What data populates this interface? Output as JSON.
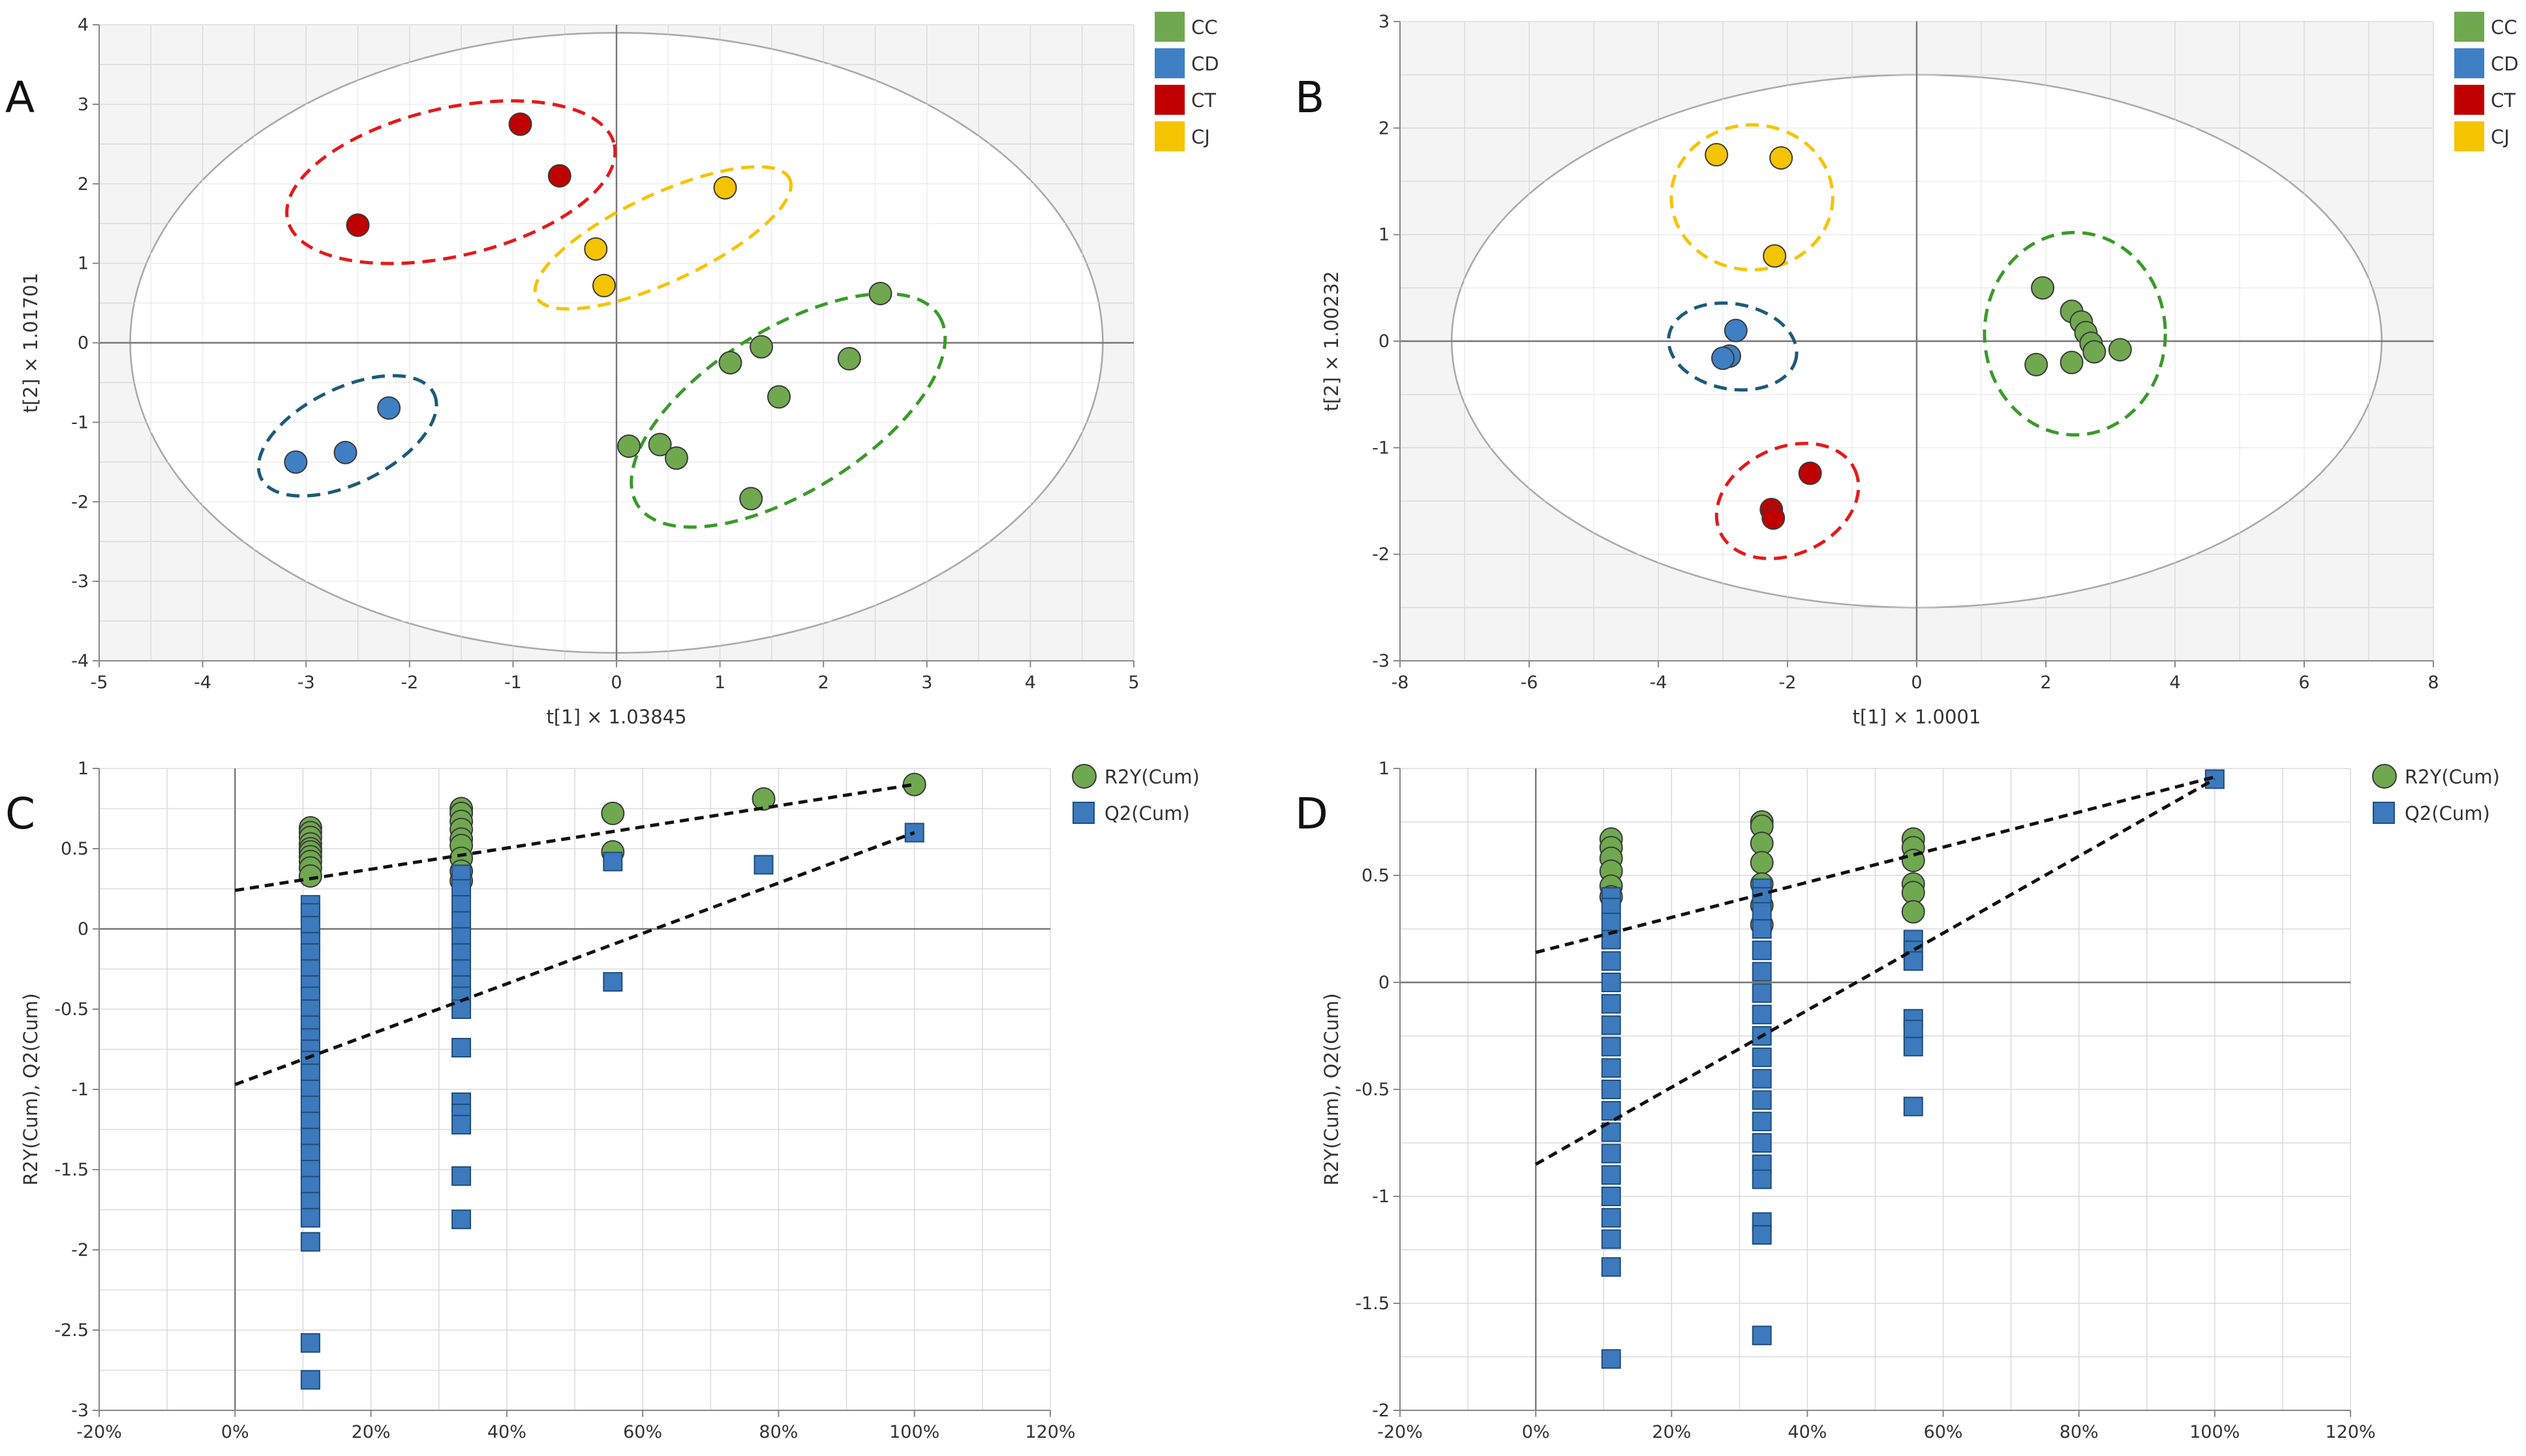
{
  "colors": {
    "CC": "#70a850",
    "CD": "#3f7fc4",
    "CT": "#c00000",
    "CJ": "#f5c400",
    "grid": "#dcdcdc",
    "axis": "#777777",
    "ellipse": "#aaaaaa",
    "shade": "#f4f4f4",
    "R2Y": "#70a850",
    "Q2": "#3c79bd"
  },
  "chart_data": [
    {
      "type": "scatter",
      "panel": "A",
      "xlabel": "t[1] × 1.03845",
      "ylabel": "t[2] × 1.01701",
      "xlim": [
        -5,
        5
      ],
      "ylim": [
        -4,
        4
      ],
      "xticks": [
        -5,
        -4,
        -3,
        -2,
        -1,
        0,
        1,
        2,
        3,
        4,
        5
      ],
      "yticks": [
        -4,
        -3,
        -2,
        -1,
        0,
        1,
        2,
        3,
        4
      ],
      "hotelling_ellipse": {
        "cx": 0,
        "cy": 0,
        "rx": 4.7,
        "ry": 3.9
      },
      "legend": [
        "CC",
        "CD",
        "CT",
        "CJ"
      ],
      "series": [
        {
          "name": "CC",
          "x": [
            1.1,
            1.4,
            2.25,
            1.57,
            2.55,
            0.12,
            0.42,
            0.58,
            1.3
          ],
          "y": [
            -0.25,
            -0.05,
            -0.2,
            -0.68,
            0.62,
            -1.3,
            -1.28,
            -1.45,
            -1.96
          ]
        },
        {
          "name": "CD",
          "x": [
            -2.2,
            -2.62,
            -3.1
          ],
          "y": [
            -0.82,
            -1.38,
            -1.5
          ]
        },
        {
          "name": "CT",
          "x": [
            -0.93,
            -0.55,
            -2.5
          ],
          "y": [
            2.75,
            2.1,
            1.48
          ]
        },
        {
          "name": "CJ",
          "x": [
            1.05,
            -0.2,
            -0.12
          ],
          "y": [
            1.95,
            1.18,
            0.72
          ]
        }
      ],
      "group_ellipses": [
        {
          "name": "CC",
          "cx": 1.66,
          "cy": -0.85,
          "rx": 1.72,
          "ry": 1.02,
          "angle": 32
        },
        {
          "name": "CD",
          "cx": -2.6,
          "cy": -1.17,
          "rx": 0.93,
          "ry": 0.6,
          "angle": 26
        },
        {
          "name": "CT",
          "cx": -1.6,
          "cy": 2.02,
          "rx": 1.62,
          "ry": 0.93,
          "angle": 13
        },
        {
          "name": "CJ",
          "cx": 0.45,
          "cy": 1.32,
          "rx": 1.35,
          "ry": 0.55,
          "angle": 25
        }
      ]
    },
    {
      "type": "scatter",
      "panel": "B",
      "xlabel": "t[1] × 1.0001",
      "ylabel": "t[2] × 1.00232",
      "xlim": [
        -8,
        8
      ],
      "ylim": [
        -3,
        3
      ],
      "xticks": [
        -8,
        -6,
        -4,
        -2,
        0,
        2,
        4,
        6,
        8
      ],
      "yticks": [
        -3,
        -2,
        -1,
        0,
        1,
        2,
        3
      ],
      "hotelling_ellipse": {
        "cx": 0,
        "cy": 0,
        "rx": 7.2,
        "ry": 2.5
      },
      "legend": [
        "CC",
        "CD",
        "CT",
        "CJ"
      ],
      "series": [
        {
          "name": "CC",
          "x": [
            1.95,
            2.4,
            2.55,
            2.62,
            2.7,
            2.75,
            3.15,
            1.85,
            2.4
          ],
          "y": [
            0.5,
            0.28,
            0.18,
            0.08,
            -0.02,
            -0.1,
            -0.08,
            -0.22,
            -0.2
          ]
        },
        {
          "name": "CD",
          "x": [
            -2.8,
            -2.9,
            -3.0
          ],
          "y": [
            0.1,
            -0.14,
            -0.16
          ]
        },
        {
          "name": "CT",
          "x": [
            -1.65,
            -2.25,
            -2.22
          ],
          "y": [
            -1.24,
            -1.58,
            -1.66
          ]
        },
        {
          "name": "CJ",
          "x": [
            -3.1,
            -2.1,
            -2.2
          ],
          "y": [
            1.75,
            1.72,
            0.8
          ]
        }
      ],
      "group_ellipses": [
        {
          "name": "CC",
          "cx": 2.45,
          "cy": 0.07,
          "rx": 1.4,
          "ry": 0.95,
          "angle": 0
        },
        {
          "name": "CD",
          "cx": -2.85,
          "cy": -0.05,
          "rx": 1.0,
          "ry": 0.4,
          "angle": -10
        },
        {
          "name": "CT",
          "cx": -2.0,
          "cy": -1.5,
          "rx": 1.15,
          "ry": 0.5,
          "angle": 25
        },
        {
          "name": "CJ",
          "cx": -2.55,
          "cy": 1.35,
          "rx": 1.25,
          "ry": 0.68,
          "angle": 0
        }
      ]
    },
    {
      "type": "scatter",
      "panel": "C",
      "xlabel": "",
      "ylabel": "R2Y(Cum), Q2(Cum)",
      "xlim": [
        -20,
        120
      ],
      "ylim": [
        -3,
        1
      ],
      "xticks": [
        -20,
        0,
        20,
        40,
        60,
        80,
        100,
        120
      ],
      "xticklabels": [
        "-20%",
        "0%",
        "20%",
        "40%",
        "60%",
        "80%",
        "100%",
        "120%"
      ],
      "yticks": [
        -3,
        -2.5,
        -2,
        -1.5,
        -1,
        -0.5,
        0,
        0.5,
        1
      ],
      "legend": [
        "R2Y(Cum)",
        "Q2(Cum)"
      ],
      "series": [
        {
          "name": "R2Y(Cum)",
          "marker": "circle",
          "x": [
            11.1,
            11.1,
            11.1,
            11.1,
            11.1,
            11.1,
            11.1,
            11.1,
            11.1,
            11.1,
            33.3,
            33.3,
            33.3,
            33.3,
            33.3,
            33.3,
            33.3,
            33.3,
            33.3,
            55.6,
            55.6,
            77.8,
            100
          ],
          "y": [
            0.63,
            0.6,
            0.57,
            0.53,
            0.5,
            0.48,
            0.45,
            0.42,
            0.38,
            0.33,
            0.75,
            0.72,
            0.67,
            0.62,
            0.56,
            0.52,
            0.44,
            0.36,
            0.3,
            0.72,
            0.48,
            0.81,
            0.9
          ]
        },
        {
          "name": "Q2(Cum)",
          "marker": "square",
          "x": [
            11.1,
            11.1,
            11.1,
            11.1,
            11.1,
            11.1,
            11.1,
            11.1,
            11.1,
            11.1,
            11.1,
            11.1,
            11.1,
            11.1,
            11.1,
            11.1,
            11.1,
            11.1,
            11.1,
            11.1,
            11.1,
            11.1,
            11.1,
            11.1,
            11.1,
            11.1,
            33.3,
            33.3,
            33.3,
            33.3,
            33.3,
            33.3,
            33.3,
            33.3,
            33.3,
            33.3,
            33.3,
            33.3,
            33.3,
            33.3,
            33.3,
            33.3,
            55.6,
            55.6,
            77.8,
            100
          ],
          "y": [
            0.15,
            0.1,
            0.02,
            -0.08,
            -0.15,
            -0.25,
            -0.35,
            -0.42,
            -0.5,
            -0.6,
            -0.68,
            -0.75,
            -0.82,
            -0.9,
            -1.0,
            -1.1,
            -1.2,
            -1.3,
            -1.4,
            -1.5,
            -1.6,
            -1.7,
            -1.8,
            -1.95,
            -2.58,
            -2.81,
            0.34,
            0.25,
            0.15,
            0.05,
            -0.05,
            -0.15,
            -0.25,
            -0.35,
            -0.42,
            -0.5,
            -0.74,
            -1.08,
            -1.15,
            -1.22,
            -1.54,
            -1.81,
            0.42,
            -0.33,
            0.4,
            0.6
          ]
        },
        {
          "name": "R2Y trend",
          "type": "line",
          "x": [
            0,
            100
          ],
          "y": [
            0.24,
            0.9
          ]
        },
        {
          "name": "Q2 trend",
          "type": "line",
          "x": [
            0,
            100
          ],
          "y": [
            -0.97,
            0.6
          ]
        }
      ]
    },
    {
      "type": "scatter",
      "panel": "D",
      "xlabel": "",
      "ylabel": "R2Y(Cum), Q2(Cum)",
      "xlim": [
        -20,
        120
      ],
      "ylim": [
        -2,
        1
      ],
      "xticks": [
        -20,
        0,
        20,
        40,
        60,
        80,
        100,
        120
      ],
      "xticklabels": [
        "-20%",
        "0%",
        "20%",
        "40%",
        "60%",
        "80%",
        "100%",
        "120%"
      ],
      "yticks": [
        -2,
        -1.5,
        -1,
        -0.5,
        0,
        0.5,
        1
      ],
      "legend": [
        "R2Y(Cum)",
        "Q2(Cum)"
      ],
      "series": [
        {
          "name": "R2Y(Cum)",
          "marker": "circle",
          "x": [
            11.1,
            11.1,
            11.1,
            11.1,
            11.1,
            11.1,
            33.3,
            33.3,
            33.3,
            33.3,
            33.3,
            33.3,
            33.3,
            55.6,
            55.6,
            55.6,
            55.6,
            55.6,
            55.6
          ],
          "y": [
            0.67,
            0.63,
            0.58,
            0.52,
            0.45,
            0.4,
            0.75,
            0.73,
            0.65,
            0.56,
            0.46,
            0.36,
            0.27,
            0.67,
            0.63,
            0.57,
            0.46,
            0.42,
            0.33
          ]
        },
        {
          "name": "Q2(Cum)",
          "marker": "square",
          "x": [
            11.1,
            11.1,
            11.1,
            11.1,
            11.1,
            11.1,
            11.1,
            11.1,
            11.1,
            11.1,
            11.1,
            11.1,
            11.1,
            11.1,
            11.1,
            11.1,
            11.1,
            11.1,
            11.1,
            11.1,
            33.3,
            33.3,
            33.3,
            33.3,
            33.3,
            33.3,
            33.3,
            33.3,
            33.3,
            33.3,
            33.3,
            33.3,
            33.3,
            33.3,
            33.3,
            33.3,
            33.3,
            33.3,
            33.3,
            55.6,
            55.6,
            55.6,
            55.6,
            55.6,
            55.6,
            55.6,
            100
          ],
          "y": [
            0.4,
            0.35,
            0.28,
            0.2,
            0.1,
            0.0,
            -0.1,
            -0.2,
            -0.3,
            -0.4,
            -0.5,
            -0.6,
            -0.7,
            -0.8,
            -0.9,
            -1.0,
            -1.1,
            -1.2,
            -1.33,
            -1.76,
            0.44,
            0.4,
            0.33,
            0.25,
            0.15,
            0.05,
            -0.05,
            -0.15,
            -0.25,
            -0.35,
            -0.45,
            -0.55,
            -0.65,
            -0.75,
            -0.85,
            -0.92,
            -1.12,
            -1.18,
            -1.65,
            0.2,
            0.15,
            0.1,
            -0.17,
            -0.22,
            -0.3,
            -0.58,
            0.95
          ]
        },
        {
          "name": "R2Y trend",
          "type": "line",
          "x": [
            0,
            100
          ],
          "y": [
            0.14,
            0.96
          ]
        },
        {
          "name": "Q2 trend",
          "type": "line",
          "x": [
            0,
            100
          ],
          "y": [
            -0.85,
            0.95
          ]
        }
      ]
    }
  ]
}
